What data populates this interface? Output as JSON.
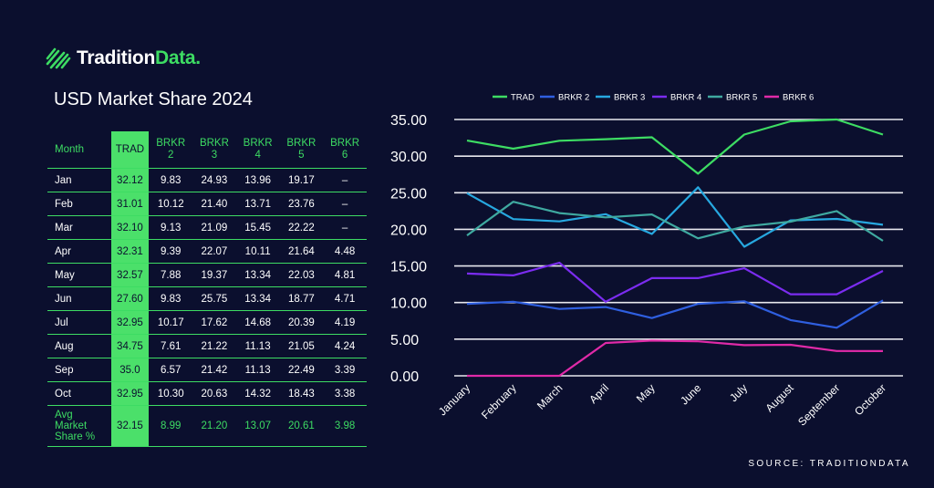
{
  "brand": {
    "part1": "Tradition",
    "part2": "Data."
  },
  "title": "USD Market Share 2024",
  "source": "SOURCE: TRADITIONDATA",
  "colors": {
    "background": "#0b0f2e",
    "accent_green": "#3ddc63"
  },
  "table": {
    "headers": [
      "Month",
      "TRAD",
      "BRKR\n2",
      "BRKR\n3",
      "BRKR\n4",
      "BRKR\n5",
      "BRKR\n6"
    ],
    "rows": [
      [
        "Jan",
        "32.12",
        "9.83",
        "24.93",
        "13.96",
        "19.17",
        "–"
      ],
      [
        "Feb",
        "31.01",
        "10.12",
        "21.40",
        "13.71",
        "23.76",
        "–"
      ],
      [
        "Mar",
        "32.10",
        "9.13",
        "21.09",
        "15.45",
        "22.22",
        "–"
      ],
      [
        "Apr",
        "32.31",
        "9.39",
        "22.07",
        "10.11",
        "21.64",
        "4.48"
      ],
      [
        "May",
        "32.57",
        "7.88",
        "19.37",
        "13.34",
        "22.03",
        "4.81"
      ],
      [
        "Jun",
        "27.60",
        "9.83",
        "25.75",
        "13.34",
        "18.77",
        "4.71"
      ],
      [
        "Jul",
        "32.95",
        "10.17",
        "17.62",
        "14.68",
        "20.39",
        "4.19"
      ],
      [
        "Aug",
        "34.75",
        "7.61",
        "21.22",
        "11.13",
        "21.05",
        "4.24"
      ],
      [
        "Sep",
        "35.0",
        "6.57",
        "21.42",
        "11.13",
        "22.49",
        "3.39"
      ],
      [
        "Oct",
        "32.95",
        "10.30",
        "20.63",
        "14.32",
        "18.43",
        "3.38"
      ]
    ],
    "avg_row": [
      "Avg\nMarket\nShare %",
      "32.15",
      "8.99",
      "21.20",
      "13.07",
      "20.61",
      "3.98"
    ]
  },
  "chart_data": {
    "type": "line",
    "x": [
      "January",
      "February",
      "March",
      "April",
      "May",
      "June",
      "July",
      "August",
      "September",
      "October"
    ],
    "ylim": [
      0,
      35
    ],
    "yticks": [
      "0.00",
      "5.00",
      "10.00",
      "15.00",
      "20.00",
      "25.00",
      "30.00",
      "35.00"
    ],
    "grid": true,
    "legend_position": "top",
    "series": [
      {
        "name": "TRAD",
        "color": "#3ddc63",
        "values": [
          32.12,
          31.01,
          32.1,
          32.31,
          32.57,
          27.6,
          32.95,
          34.75,
          35.0,
          32.95
        ]
      },
      {
        "name": "BRKR 2",
        "color": "#2f5fe0",
        "values": [
          9.83,
          10.12,
          9.13,
          9.39,
          7.88,
          9.83,
          10.17,
          7.61,
          6.57,
          10.3
        ]
      },
      {
        "name": "BRKR 3",
        "color": "#27a8e0",
        "values": [
          24.93,
          21.4,
          21.09,
          22.07,
          19.37,
          25.75,
          17.62,
          21.22,
          21.42,
          20.63
        ]
      },
      {
        "name": "BRKR 4",
        "color": "#7b2cf0",
        "values": [
          13.96,
          13.71,
          15.45,
          10.11,
          13.34,
          13.34,
          14.68,
          11.13,
          11.13,
          14.32
        ]
      },
      {
        "name": "BRKR 5",
        "color": "#3fa9a0",
        "values": [
          19.17,
          23.76,
          22.22,
          21.64,
          22.03,
          18.77,
          20.39,
          21.05,
          22.49,
          18.43
        ]
      },
      {
        "name": "BRKR 6",
        "color": "#e02aa8",
        "values": [
          0,
          0,
          0,
          4.48,
          4.81,
          4.71,
          4.19,
          4.24,
          3.39,
          3.38
        ]
      }
    ]
  }
}
